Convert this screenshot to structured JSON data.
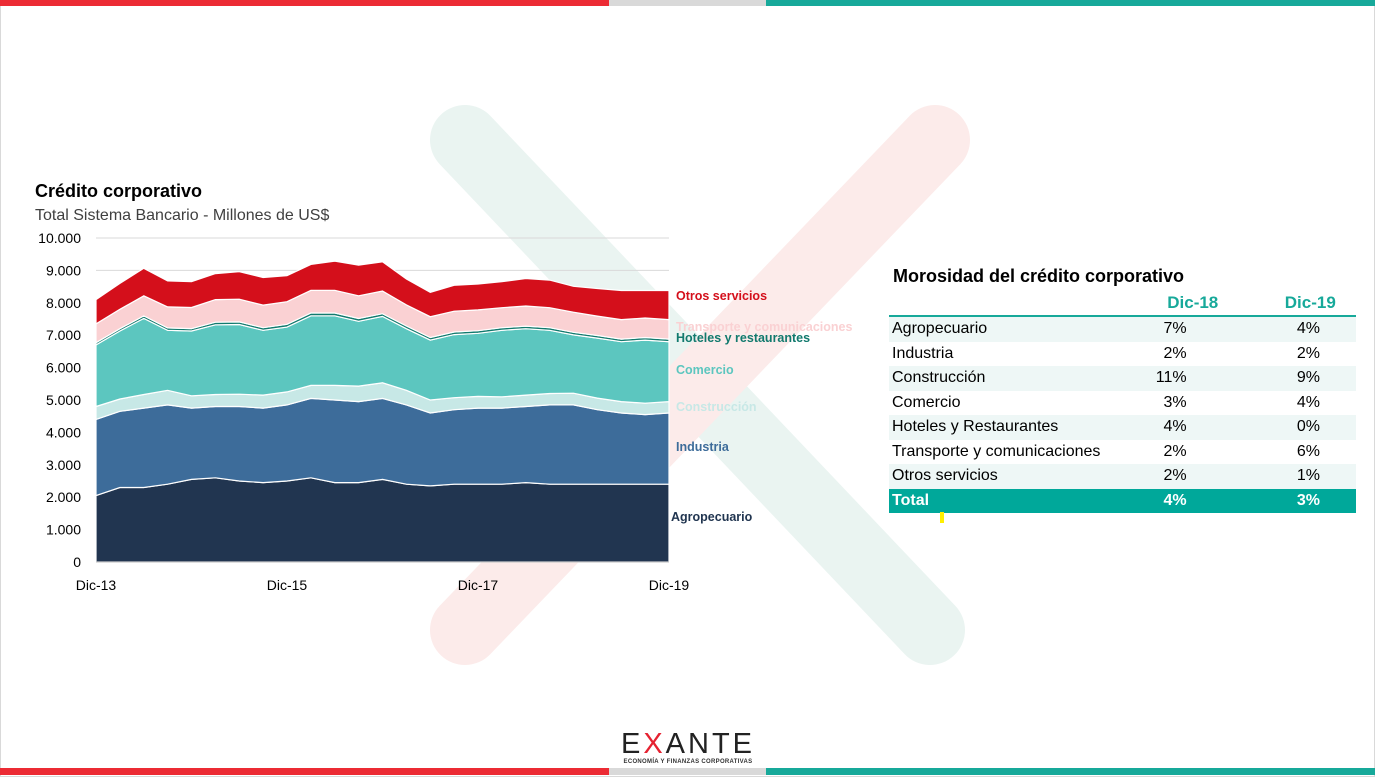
{
  "colors": {
    "red": "#ec2b34",
    "gray": "#d9d9d9",
    "teal": "#17a99a",
    "agropecuario": "#213550",
    "industria": "#3d6c9a",
    "construccion": "#c7e8e6",
    "comercio": "#5cc6bf",
    "hoteles": "#127a6e",
    "transporte": "#fad1d3",
    "otros": "#d40f1b"
  },
  "chart": {
    "title": "Crédito corporativo",
    "subtitle": "Total Sistema Bancario - Millones de US$"
  },
  "chart_data": {
    "type": "area",
    "title": "Crédito corporativo",
    "subtitle": "Total Sistema Bancario - Millones de US$",
    "stacked": true,
    "x": [
      "Dic-13",
      "Mar-14",
      "Jun-14",
      "Sep-14",
      "Dic-14",
      "Mar-15",
      "Jun-15",
      "Sep-15",
      "Dic-15",
      "Mar-16",
      "Jun-16",
      "Sep-16",
      "Dic-16",
      "Mar-17",
      "Jun-17",
      "Sep-17",
      "Dic-17",
      "Mar-18",
      "Jun-18",
      "Sep-18",
      "Dic-18",
      "Mar-19",
      "Jun-19",
      "Sep-19",
      "Dic-19"
    ],
    "xticks": [
      "Dic-13",
      "Dic-15",
      "Dic-17",
      "Dic-19"
    ],
    "ylim": [
      0,
      10000
    ],
    "yticks": [
      "0",
      "1.000",
      "2.000",
      "3.000",
      "4.000",
      "5.000",
      "6.000",
      "7.000",
      "8.000",
      "9.000",
      "10.000"
    ],
    "grid": true,
    "series": [
      {
        "name": "Agropecuario",
        "values": [
          2050,
          2300,
          2300,
          2400,
          2550,
          2600,
          2500,
          2450,
          2500,
          2600,
          2450,
          2450,
          2550,
          2400,
          2350,
          2400,
          2400,
          2400,
          2450,
          2400,
          2400,
          2400,
          2400,
          2400,
          2400
        ]
      },
      {
        "name": "Industria",
        "values": [
          2350,
          2350,
          2450,
          2450,
          2200,
          2200,
          2300,
          2300,
          2350,
          2450,
          2550,
          2500,
          2500,
          2450,
          2250,
          2300,
          2350,
          2350,
          2350,
          2450,
          2450,
          2300,
          2200,
          2150,
          2200
        ]
      },
      {
        "name": "Construcción",
        "values": [
          400,
          380,
          420,
          450,
          380,
          370,
          380,
          400,
          400,
          400,
          450,
          480,
          480,
          450,
          400,
          370,
          360,
          350,
          350,
          350,
          360,
          360,
          350,
          350,
          350
        ]
      },
      {
        "name": "Comercio",
        "values": [
          1900,
          2100,
          2350,
          1850,
          2000,
          2150,
          2150,
          2000,
          2000,
          2150,
          2150,
          2000,
          2050,
          1900,
          1850,
          1950,
          1950,
          2050,
          2050,
          1950,
          1800,
          1850,
          1850,
          1950,
          1850
        ]
      },
      {
        "name": "Hoteles y restaurantes",
        "values": [
          70,
          70,
          75,
          75,
          75,
          80,
          80,
          80,
          85,
          85,
          85,
          85,
          85,
          85,
          80,
          80,
          80,
          80,
          80,
          80,
          80,
          80,
          80,
          80,
          80
        ]
      },
      {
        "name": "Transporte y comunicaciones",
        "values": [
          580,
          600,
          620,
          650,
          650,
          700,
          700,
          700,
          700,
          700,
          700,
          700,
          700,
          650,
          640,
          640,
          640,
          620,
          620,
          620,
          620,
          600,
          600,
          600,
          600
        ]
      },
      {
        "name": "Otros servicios",
        "values": [
          750,
          800,
          850,
          800,
          800,
          800,
          850,
          850,
          800,
          800,
          900,
          950,
          900,
          800,
          750,
          800,
          800,
          800,
          850,
          850,
          800,
          850,
          900,
          850,
          900
        ]
      }
    ],
    "series_labels": [
      "Otros servicios",
      "Transporte  y comunicaciones",
      "Hoteles y restaurantes",
      "Comercio",
      "Construcción",
      "Industria",
      "Agropecuario"
    ]
  },
  "table": {
    "title": "Morosidad del crédito corporativo",
    "headers": [
      "Dic-18",
      "Dic-19"
    ],
    "rows": [
      {
        "label": "Agropecuario",
        "v1": "7%",
        "v2": "4%"
      },
      {
        "label": "Industria",
        "v1": "2%",
        "v2": "2%"
      },
      {
        "label": "Construcción",
        "v1": "11%",
        "v2": "9%"
      },
      {
        "label": "Comercio",
        "v1": "3%",
        "v2": "4%"
      },
      {
        "label": "Hoteles y Restaurantes",
        "v1": "4%",
        "v2": "0%"
      },
      {
        "label": "Transporte y comunicaciones",
        "v1": "2%",
        "v2": "6%"
      },
      {
        "label": "Otros servicios",
        "v1": "2%",
        "v2": "1%"
      }
    ],
    "total": {
      "label": "Total",
      "v1": "4%",
      "v2": "3%"
    }
  },
  "logo": {
    "word_pre": "E",
    "word_x": "X",
    "word_post": "ANTE",
    "tagline": "ECONOMÍA Y FINANZAS CORPORATIVAS"
  }
}
